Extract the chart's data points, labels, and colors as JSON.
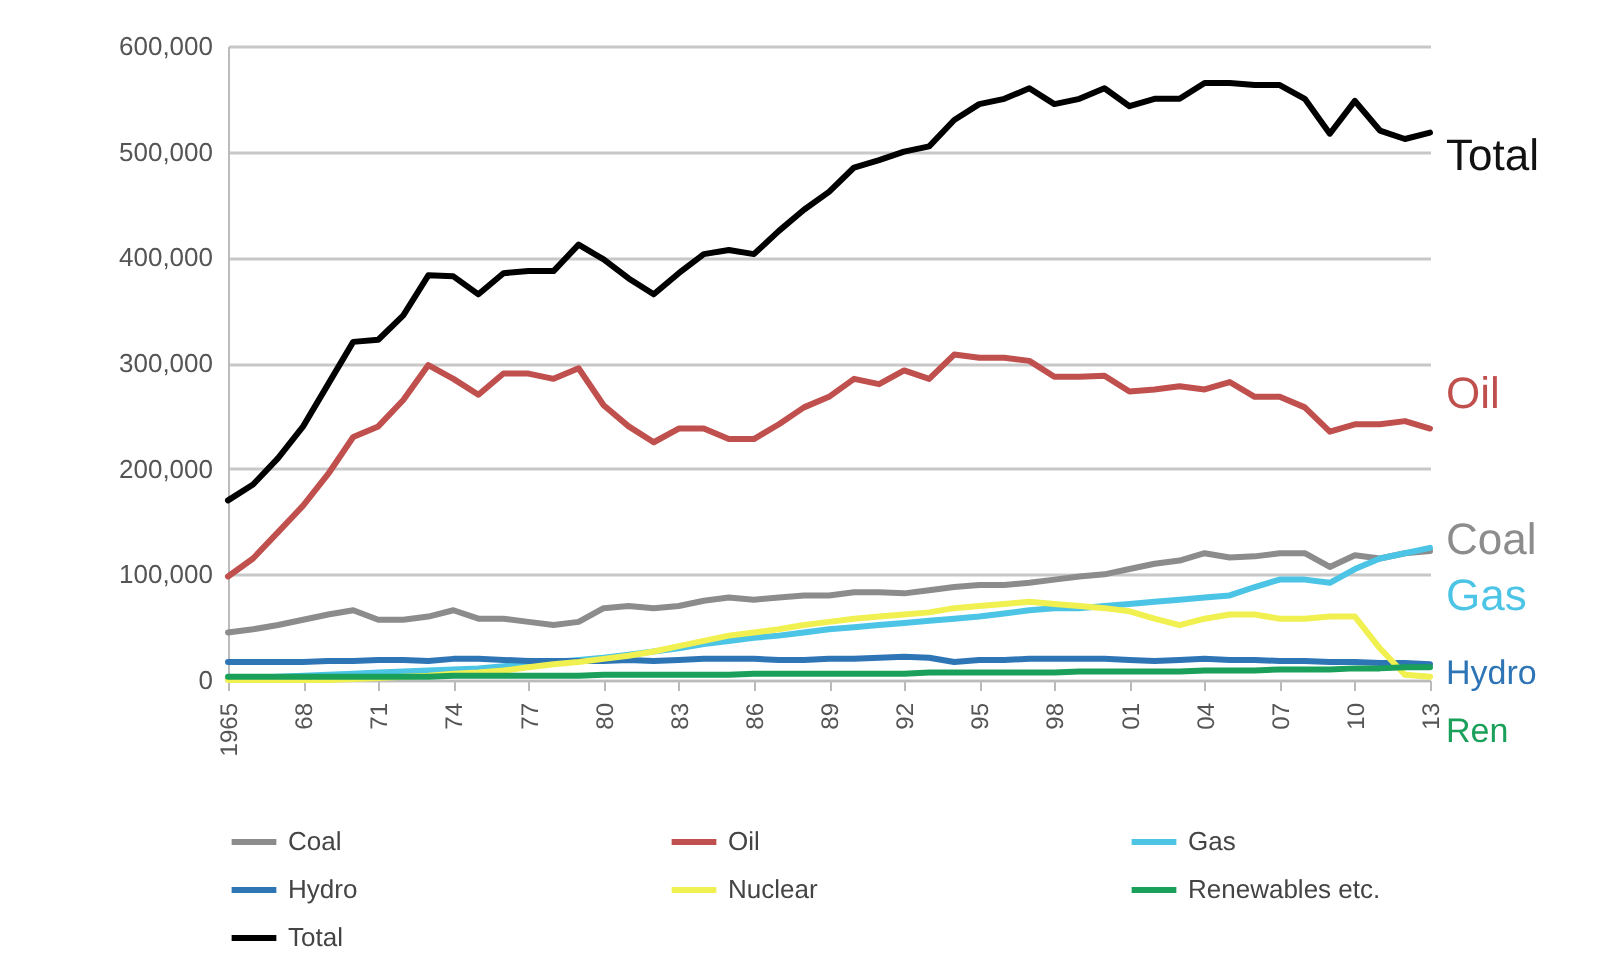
{
  "chart_data": {
    "type": "line",
    "x": [
      1965,
      1966,
      1967,
      1968,
      1969,
      1970,
      1971,
      1972,
      1973,
      1974,
      1975,
      1976,
      1977,
      1978,
      1979,
      1980,
      1981,
      1982,
      1983,
      1984,
      1985,
      1986,
      1987,
      1988,
      1989,
      1990,
      1991,
      1992,
      1993,
      1994,
      1995,
      1996,
      1997,
      1998,
      1999,
      2000,
      2001,
      2002,
      2003,
      2004,
      2005,
      2006,
      2007,
      2008,
      2009,
      2010,
      2011,
      2012,
      2013
    ],
    "series": [
      {
        "name": "Coal",
        "color": "#8c8c8c",
        "values": [
          45000,
          48000,
          52000,
          57000,
          62000,
          66000,
          57000,
          57000,
          60000,
          66000,
          58000,
          58000,
          55000,
          52000,
          55000,
          68000,
          70000,
          68000,
          70000,
          75000,
          78000,
          76000,
          78000,
          80000,
          80000,
          83000,
          83000,
          82000,
          85000,
          88000,
          90000,
          90000,
          92000,
          95000,
          98000,
          100000,
          105000,
          110000,
          113000,
          120000,
          116000,
          117000,
          120000,
          120000,
          107000,
          118000,
          115000,
          120000,
          122000
        ]
      },
      {
        "name": "Oil",
        "color": "#c0504d",
        "values": [
          98000,
          115000,
          140000,
          165000,
          195000,
          230000,
          240000,
          265000,
          298000,
          285000,
          270000,
          290000,
          290000,
          285000,
          295000,
          260000,
          240000,
          225000,
          238000,
          238000,
          228000,
          228000,
          242000,
          258000,
          268000,
          285000,
          280000,
          293000,
          285000,
          308000,
          305000,
          305000,
          302000,
          287000,
          287000,
          288000,
          273000,
          275000,
          278000,
          275000,
          282000,
          268000,
          268000,
          258000,
          235000,
          242000,
          242000,
          245000,
          238000
        ]
      },
      {
        "name": "Gas",
        "color": "#4bc4e6",
        "values": [
          1000,
          2000,
          3000,
          4000,
          5000,
          6000,
          7000,
          8000,
          9000,
          10000,
          11000,
          13000,
          15000,
          17000,
          19000,
          21000,
          24000,
          27000,
          30000,
          34000,
          37000,
          40000,
          42000,
          45000,
          48000,
          50000,
          52000,
          54000,
          56000,
          58000,
          60000,
          63000,
          66000,
          68000,
          68000,
          70000,
          72000,
          74000,
          76000,
          78000,
          80000,
          88000,
          95000,
          95000,
          92000,
          105000,
          115000,
          120000,
          125000
        ]
      },
      {
        "name": "Hydro",
        "color": "#2e75b6",
        "values": [
          17000,
          17000,
          17000,
          17000,
          18000,
          18000,
          19000,
          19000,
          18000,
          20000,
          20000,
          19000,
          18000,
          18000,
          18000,
          18000,
          19000,
          18000,
          19000,
          20000,
          20000,
          20000,
          19000,
          19000,
          20000,
          20000,
          21000,
          22000,
          21000,
          17000,
          19000,
          19000,
          20000,
          20000,
          20000,
          20000,
          19000,
          18000,
          19000,
          20000,
          19000,
          19000,
          18000,
          18000,
          17000,
          17000,
          16000,
          16000,
          15000
        ]
      },
      {
        "name": "Nuclear",
        "color": "#f0f050",
        "values": [
          0,
          0,
          0,
          0,
          0,
          1000,
          2000,
          3000,
          4000,
          6000,
          7000,
          9000,
          12000,
          15000,
          17000,
          20000,
          23000,
          27000,
          32000,
          37000,
          42000,
          45000,
          48000,
          52000,
          55000,
          58000,
          60000,
          62000,
          64000,
          68000,
          70000,
          72000,
          74000,
          72000,
          70000,
          68000,
          65000,
          58000,
          52000,
          58000,
          62000,
          62000,
          58000,
          58000,
          60000,
          60000,
          30000,
          5000,
          3000
        ]
      },
      {
        "name": "Renewables etc.",
        "color": "#1aa05a",
        "values": [
          3000,
          3000,
          3000,
          3000,
          3000,
          3000,
          3000,
          3000,
          3000,
          4000,
          4000,
          4000,
          4000,
          4000,
          4000,
          5000,
          5000,
          5000,
          5000,
          5000,
          5000,
          6000,
          6000,
          6000,
          6000,
          6000,
          6000,
          6000,
          7000,
          7000,
          7000,
          7000,
          7000,
          7000,
          8000,
          8000,
          8000,
          8000,
          8000,
          9000,
          9000,
          9000,
          10000,
          10000,
          10000,
          11000,
          11000,
          12000,
          12000
        ]
      },
      {
        "name": "Total",
        "color": "#000000",
        "values": [
          170000,
          185000,
          210000,
          240000,
          280000,
          320000,
          322000,
          345000,
          383000,
          382000,
          365000,
          385000,
          387000,
          387000,
          412000,
          398000,
          380000,
          365000,
          385000,
          403000,
          407000,
          403000,
          425000,
          445000,
          462000,
          485000,
          492000,
          500000,
          505000,
          530000,
          545000,
          550000,
          560000,
          545000,
          550000,
          560000,
          543000,
          550000,
          550000,
          565000,
          565000,
          563000,
          563000,
          550000,
          517000,
          548000,
          520000,
          512000,
          518000
        ]
      }
    ],
    "xlim": [
      1965,
      2013
    ],
    "xticks": [
      {
        "value": 1965,
        "label": "1965"
      },
      {
        "value": 1968,
        "label": "68"
      },
      {
        "value": 1971,
        "label": "71"
      },
      {
        "value": 1974,
        "label": "74"
      },
      {
        "value": 1977,
        "label": "77"
      },
      {
        "value": 1980,
        "label": "80"
      },
      {
        "value": 1983,
        "label": "83"
      },
      {
        "value": 1986,
        "label": "86"
      },
      {
        "value": 1989,
        "label": "89"
      },
      {
        "value": 1992,
        "label": "92"
      },
      {
        "value": 1995,
        "label": "95"
      },
      {
        "value": 1998,
        "label": "98"
      },
      {
        "value": 2001,
        "label": "01"
      },
      {
        "value": 2004,
        "label": "04"
      },
      {
        "value": 2007,
        "label": "07"
      },
      {
        "value": 2010,
        "label": "10"
      },
      {
        "value": 2013,
        "label": "13"
      }
    ],
    "ylim": [
      0,
      600000
    ],
    "yticks": [
      0,
      {
        "value": 100000,
        "label": "100,000"
      },
      {
        "value": 200000,
        "label": "200,000"
      },
      {
        "value": 300000,
        "label": "300,000"
      },
      {
        "value": 400000,
        "label": "400,000"
      },
      {
        "value": 500000,
        "label": "500,000"
      },
      {
        "value": 600000,
        "label": "600,000"
      }
    ],
    "grid": "y",
    "legend": "bottom",
    "annotations": [
      "Total",
      "Oil",
      "Coal",
      "Gas",
      "Hydro",
      "Ren"
    ]
  }
}
